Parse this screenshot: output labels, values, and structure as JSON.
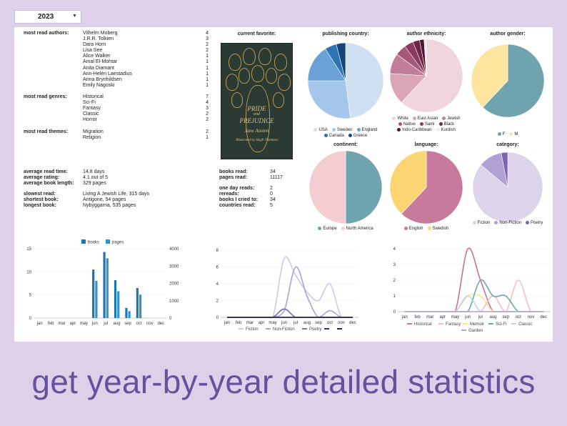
{
  "year": "2023",
  "authors": {
    "label": "most read authors:",
    "items": [
      {
        "name": "Vilhelm Moberg",
        "count": "4"
      },
      {
        "name": "J.R.R. Tolkien",
        "count": "3"
      },
      {
        "name": "Dara Horn",
        "count": "2"
      },
      {
        "name": "Lisa See",
        "count": "2"
      },
      {
        "name": "Alice Walker",
        "count": "1"
      },
      {
        "name": "Amal El-Mohtar",
        "count": "1"
      },
      {
        "name": "Anita Diamant",
        "count": "1"
      },
      {
        "name": "Ann-Helén Laestadius",
        "count": "1"
      },
      {
        "name": "Anna Brynhildsen",
        "count": "1"
      },
      {
        "name": "Emily Nagoski",
        "count": "1"
      }
    ]
  },
  "genres": {
    "label": "most read genres:",
    "items": [
      {
        "name": "Historical",
        "count": "7"
      },
      {
        "name": "Sci-Fi",
        "count": "4"
      },
      {
        "name": "Fantasy",
        "count": "3"
      },
      {
        "name": "Classic",
        "count": "2"
      },
      {
        "name": "Horror",
        "count": "2"
      }
    ]
  },
  "themes": {
    "label": "most read themes:",
    "items": [
      {
        "name": "Migration",
        "count": "2"
      },
      {
        "name": "Religion",
        "count": "1"
      }
    ]
  },
  "favorite": {
    "label": "current favorite:",
    "cover_title_1": "PRIDE",
    "cover_title_2": "and",
    "cover_title_3": "PREJUDICE",
    "cover_author": "Jane Austen",
    "cover_illustrated": "Illustrated by Hugh Thomson"
  },
  "stats_left": [
    {
      "label": "average read time:",
      "value": "14.8 days"
    },
    {
      "label": "average rating:",
      "value": "4.1 out of 5"
    },
    {
      "label": "average book length:",
      "value": "329 pages"
    },
    {
      "label": "slowest read:",
      "value": "Living A Jewish Life, 315 days"
    },
    {
      "label": "shortest book:",
      "value": "Antigone, 54 pages"
    },
    {
      "label": "longest book:",
      "value": "Nybyggarna, 535 pages"
    }
  ],
  "stats_right": [
    {
      "label": "books read:",
      "value": "34"
    },
    {
      "label": "pages read:",
      "value": "11117"
    },
    {
      "label": "one day reads:",
      "value": "2"
    },
    {
      "label": "rereads:",
      "value": "0"
    },
    {
      "label": "books I cried to:",
      "value": "34"
    },
    {
      "label": "countries read:",
      "value": "5"
    }
  ],
  "pies": [
    {
      "id": "country",
      "title": "publishing country:",
      "slices": [
        {
          "name": "USA",
          "value": 48,
          "color": "#cfe0f3"
        },
        {
          "name": "Sweden",
          "value": 27,
          "color": "#a3c6ea"
        },
        {
          "name": "England",
          "value": 16,
          "color": "#6aa2d8"
        },
        {
          "name": "Canada",
          "value": 5,
          "color": "#2e74b5"
        },
        {
          "name": "Greece",
          "value": 4,
          "color": "#12467a"
        }
      ]
    },
    {
      "id": "ethnicity",
      "title": "author ethnicity:",
      "slices": [
        {
          "name": "White",
          "value": 62,
          "color": "#f0d4de"
        },
        {
          "name": "East Asian",
          "value": 14,
          "color": "#d9a5b7"
        },
        {
          "name": "Jewish",
          "value": 9,
          "color": "#c27d98"
        },
        {
          "name": "Native",
          "value": 5,
          "color": "#a5587a"
        },
        {
          "name": "Sami",
          "value": 4,
          "color": "#8a3a5e"
        },
        {
          "name": "Black",
          "value": 3,
          "color": "#6e2444"
        },
        {
          "name": "Indo-Caribbean",
          "value": 2,
          "color": "#521530"
        },
        {
          "name": "Kurdish",
          "value": 1,
          "color": "#f7e8ee"
        }
      ]
    },
    {
      "id": "gender",
      "title": "author gender:",
      "slices": [
        {
          "name": "F",
          "value": 62,
          "color": "#6fa3ad"
        },
        {
          "name": "M",
          "value": 38,
          "color": "#fde5a0"
        }
      ]
    },
    {
      "id": "continent",
      "title": "continent:",
      "slices": [
        {
          "name": "Europe",
          "value": 50,
          "color": "#6fa3ad"
        },
        {
          "name": "North America",
          "value": 50,
          "color": "#f4cdd3"
        }
      ]
    },
    {
      "id": "language",
      "title": "language:",
      "slices": [
        {
          "name": "English",
          "value": 62,
          "color": "#c77a9c"
        },
        {
          "name": "Swedish",
          "value": 38,
          "color": "#fcd573"
        }
      ]
    },
    {
      "id": "category",
      "title": "category:",
      "slices": [
        {
          "name": "Fiction",
          "value": 86,
          "color": "#ddd4ec"
        },
        {
          "name": "Non-Fiction",
          "value": 11,
          "color": "#b1a0d3"
        },
        {
          "name": "Poetry",
          "value": 3,
          "color": "#7d64b2"
        }
      ]
    }
  ],
  "months": [
    "jan",
    "feb",
    "mar",
    "apr",
    "may",
    "jun",
    "jul",
    "aug",
    "sep",
    "oct",
    "nov",
    "dec"
  ],
  "chart_data": [
    {
      "type": "bar",
      "categories": [
        "jan",
        "feb",
        "mar",
        "apr",
        "may",
        "jun",
        "jul",
        "aug",
        "sep",
        "oct",
        "nov",
        "dec"
      ],
      "series": [
        {
          "name": "books",
          "axis": "left",
          "color": "#1c75b5",
          "values": [
            0,
            0,
            0,
            0,
            0,
            10.5,
            14.3,
            8.2,
            2.2,
            6.5,
            0,
            0
          ]
        },
        {
          "name": "pages",
          "axis": "right",
          "color": "#2f93cc",
          "values": [
            0,
            0,
            0,
            0,
            0,
            2150,
            3450,
            1550,
            400,
            1350,
            0,
            0
          ]
        }
      ],
      "ylim": [
        0,
        15
      ],
      "yticks": [
        "0",
        "5",
        "10",
        "15"
      ],
      "y2lim": [
        0,
        4000
      ],
      "y2ticks": [
        "0",
        "1000",
        "2000",
        "3000",
        "4000"
      ],
      "legend": "top"
    },
    {
      "type": "line",
      "categories": [
        "jan",
        "feb",
        "mar",
        "apr",
        "may",
        "jun",
        "jul",
        "aug",
        "sep",
        "oct",
        "nov",
        "dec"
      ],
      "series": [
        {
          "name": "Fiction",
          "color": "#d2c7e8",
          "values": [
            0,
            0,
            0,
            0,
            0,
            7,
            5,
            3,
            2,
            4,
            0,
            0
          ]
        },
        {
          "name": "Non-Fiction",
          "color": "#b0a0d2",
          "values": [
            0,
            0,
            0,
            0,
            0,
            0.8,
            6,
            2.5,
            0,
            0.8,
            0,
            0
          ]
        },
        {
          "name": "Poetry",
          "color": "#7f68b4",
          "values": [
            0,
            0,
            0,
            0,
            0,
            1,
            0,
            0,
            0,
            0,
            0,
            0
          ]
        },
        {
          "name": "",
          "color": "#3d2f6b",
          "values": [
            0,
            0,
            0,
            0,
            0,
            0,
            0,
            0,
            0,
            0,
            0,
            0
          ]
        },
        {
          "name": "",
          "color": "#2a2050",
          "values": [
            0,
            0,
            0,
            0,
            0,
            0,
            0,
            0,
            0,
            0,
            0,
            0
          ]
        }
      ],
      "ylim": [
        0,
        8
      ],
      "yticks": [
        "0",
        "2",
        "4",
        "6",
        "8"
      ],
      "legend": "bottom"
    },
    {
      "type": "line",
      "categories": [
        "jan",
        "feb",
        "mar",
        "apr",
        "may",
        "jun",
        "jul",
        "aug",
        "sep",
        "oct",
        "nov",
        "dec"
      ],
      "series": [
        {
          "name": "Historical",
          "color": "#c97392",
          "values": [
            0,
            0,
            0,
            0,
            0,
            4,
            2,
            0,
            0,
            0,
            0,
            0
          ]
        },
        {
          "name": "Fantasy",
          "color": "#f2bfc8",
          "values": [
            0,
            0,
            0,
            0,
            0,
            0,
            0,
            1,
            0,
            2,
            0,
            0
          ]
        },
        {
          "name": "Memoir",
          "color": "#fde08a",
          "values": [
            0,
            0,
            0,
            0,
            0,
            1,
            1,
            0,
            0,
            0,
            0,
            0
          ]
        },
        {
          "name": "Sci-Fi",
          "color": "#6fa3ad",
          "values": [
            0,
            0,
            0,
            0,
            0,
            0,
            2,
            1,
            1,
            0,
            0,
            0
          ]
        },
        {
          "name": "Classic",
          "color": "#b9d7e0",
          "values": [
            0,
            0,
            0,
            0,
            0,
            1,
            0,
            0,
            0,
            0,
            0,
            0
          ]
        },
        {
          "name": "Garden",
          "color": "#b8a5d8",
          "values": [
            0,
            0,
            0,
            0,
            0,
            0,
            0,
            0,
            0,
            0,
            0,
            0
          ]
        }
      ],
      "ylim": [
        0,
        4
      ],
      "yticks": [
        "0",
        "1",
        "2",
        "3",
        "4"
      ],
      "legend": "bottom"
    }
  ],
  "tagline": "get year-by-year detailed statistics"
}
